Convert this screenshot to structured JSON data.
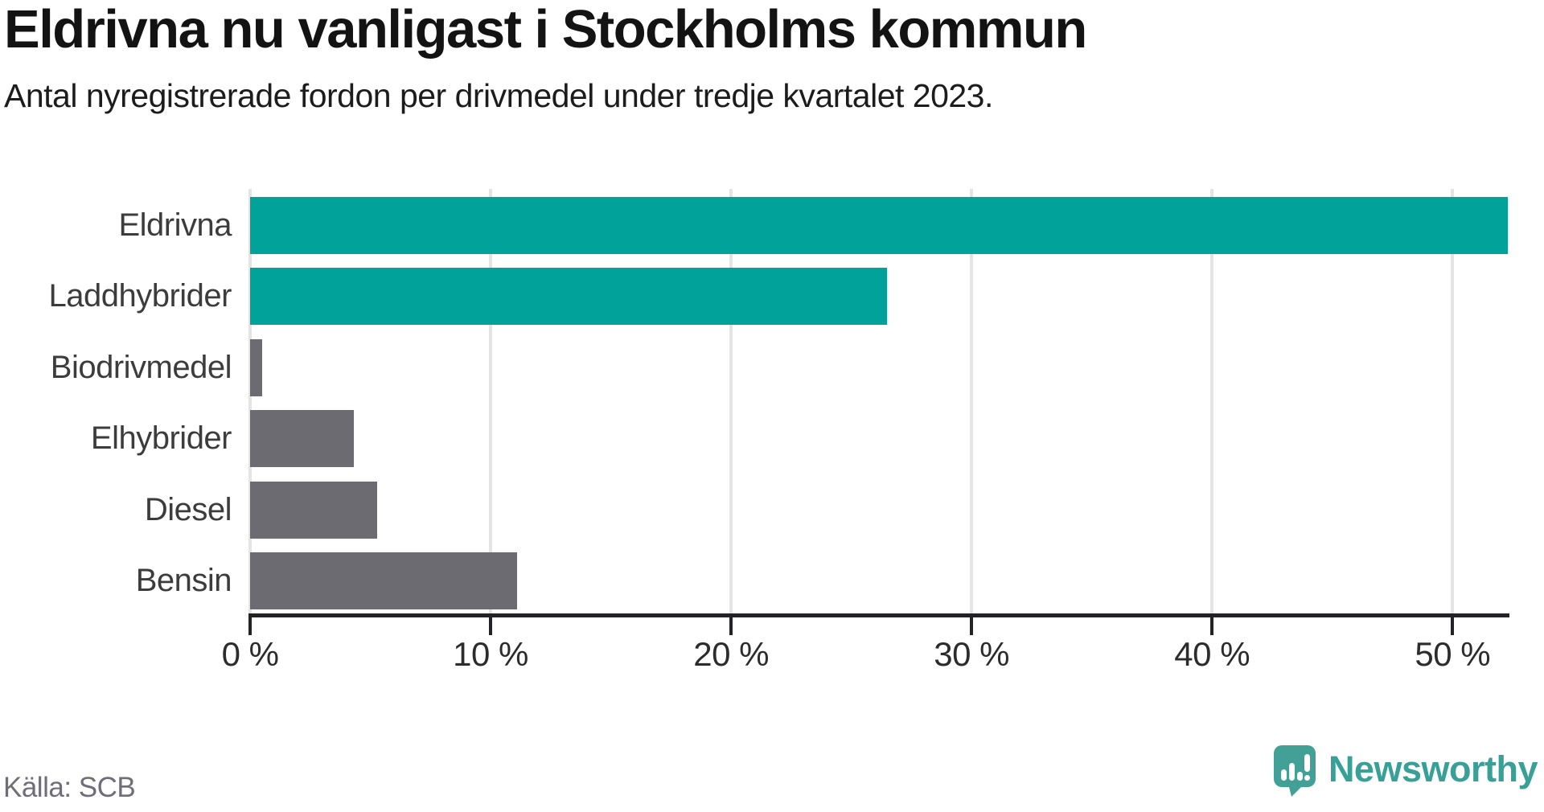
{
  "header": {
    "title": "Eldrivna nu vanligast i Stockholms kommun",
    "subtitle": "Antal nyregistrerade fordon per drivmedel under tredje kvartalet 2023."
  },
  "chart_data": {
    "type": "bar",
    "orientation": "horizontal",
    "title": "Eldrivna nu vanligast i Stockholms kommun",
    "subtitle": "Antal nyregistrerade fordon per drivmedel under tredje kvartalet 2023.",
    "categories": [
      "Eldrivna",
      "Laddhybrider",
      "Biodrivmedel",
      "Elhybrider",
      "Diesel",
      "Bensin"
    ],
    "values": [
      52.3,
      26.5,
      0.5,
      4.3,
      5.3,
      11.1
    ],
    "unit": "%",
    "xlim": [
      0,
      52.3
    ],
    "x_ticks": [
      0,
      10,
      20,
      30,
      40,
      50
    ],
    "x_tick_labels": [
      "0 %",
      "10 %",
      "20 %",
      "30 %",
      "40 %",
      "50 %"
    ],
    "grid": true,
    "legend": false,
    "ylabel": "",
    "xlabel": "",
    "bar_colors": [
      "#00a29a",
      "#00a29a",
      "#6c6b72",
      "#6c6b72",
      "#6c6b72",
      "#6c6b72"
    ],
    "highlight_color": "#00a29a",
    "default_color": "#6c6b72"
  },
  "footer": {
    "source": "Källa: SCB",
    "logo_text": "Newsworthy"
  },
  "colors": {
    "accent_teal": "#00a29a",
    "bar_gray": "#6c6b72",
    "logo_teal": "#38a097",
    "gridline": "#e4e4e4",
    "axis": "#232327"
  }
}
